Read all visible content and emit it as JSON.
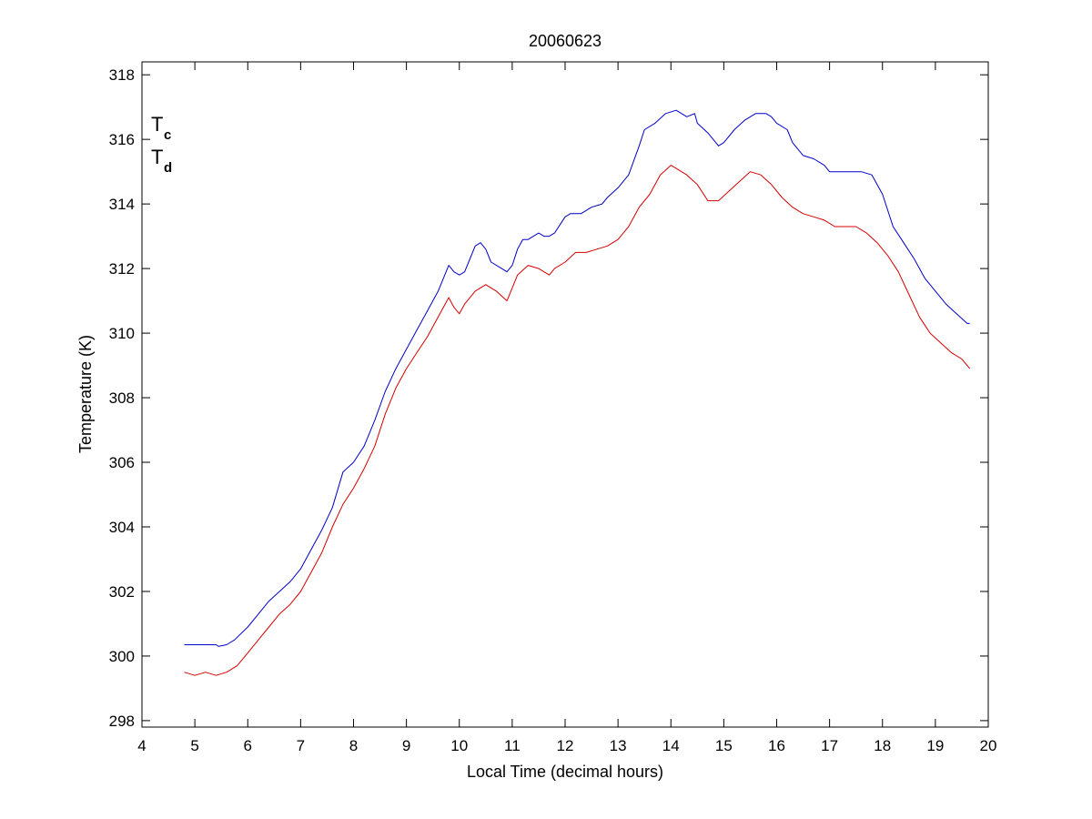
{
  "chart_data": {
    "type": "line",
    "title": "20060623",
    "xlabel": "Local Time (decimal hours)",
    "ylabel": "Temperature (K)",
    "xlim": [
      4,
      20
    ],
    "ylim": [
      297.8,
      318.4
    ],
    "xticks": [
      4,
      5,
      6,
      7,
      8,
      9,
      10,
      11,
      12,
      13,
      14,
      15,
      16,
      17,
      18,
      19,
      20
    ],
    "yticks": [
      298,
      300,
      302,
      304,
      306,
      308,
      310,
      312,
      314,
      316,
      318
    ],
    "grid": false,
    "legend": {
      "placement": "top-left",
      "entries": [
        {
          "main": "T",
          "sub": "c",
          "color": "#0000c8"
        },
        {
          "main": "T",
          "sub": "d",
          "color": "#d40000"
        }
      ]
    },
    "series": [
      {
        "color": "#0000c8",
        "x": [
          4.8,
          5.0,
          5.2,
          5.4,
          5.45,
          5.6,
          5.75,
          6.0,
          6.2,
          6.4,
          6.6,
          6.8,
          7.0,
          7.2,
          7.4,
          7.6,
          7.8,
          8.0,
          8.2,
          8.4,
          8.6,
          8.8,
          9.0,
          9.2,
          9.4,
          9.6,
          9.8,
          9.9,
          10.0,
          10.1,
          10.2,
          10.3,
          10.4,
          10.5,
          10.6,
          10.8,
          10.9,
          11.0,
          11.1,
          11.2,
          11.3,
          11.5,
          11.6,
          11.7,
          11.8,
          12.0,
          12.1,
          12.3,
          12.5,
          12.7,
          12.8,
          13.0,
          13.2,
          13.4,
          13.5,
          13.7,
          13.9,
          14.1,
          14.3,
          14.45,
          14.5,
          14.7,
          14.9,
          15.0,
          15.2,
          15.4,
          15.6,
          15.8,
          15.9,
          16.0,
          16.2,
          16.3,
          16.5,
          16.7,
          16.9,
          17.0,
          17.2,
          17.4,
          17.6,
          17.8,
          18.0,
          18.2,
          18.4,
          18.6,
          18.8,
          19.0,
          19.2,
          19.4,
          19.6,
          19.65
        ],
        "y": [
          300.35,
          300.35,
          300.35,
          300.35,
          300.3,
          300.35,
          300.5,
          300.9,
          301.3,
          301.7,
          302.0,
          302.3,
          302.7,
          303.3,
          303.9,
          304.6,
          305.7,
          306.0,
          306.5,
          307.3,
          308.2,
          308.9,
          309.5,
          310.1,
          310.7,
          311.3,
          312.1,
          311.9,
          311.8,
          311.9,
          312.3,
          312.7,
          312.8,
          312.6,
          312.2,
          312.0,
          311.9,
          312.1,
          312.6,
          312.9,
          312.9,
          313.1,
          313.0,
          313.0,
          313.1,
          313.6,
          313.7,
          313.7,
          313.9,
          314.0,
          314.2,
          314.5,
          314.9,
          315.8,
          316.3,
          316.5,
          316.8,
          316.9,
          316.7,
          316.8,
          316.5,
          316.2,
          315.8,
          315.9,
          316.3,
          316.6,
          316.8,
          316.8,
          316.7,
          316.5,
          316.3,
          315.9,
          315.5,
          315.4,
          315.2,
          315.0,
          315.0,
          315.0,
          315.0,
          314.9,
          314.3,
          313.3,
          312.8,
          312.3,
          311.7,
          311.3,
          310.9,
          310.6,
          310.3,
          310.3
        ]
      },
      {
        "color": "#d40000",
        "x": [
          4.8,
          5.0,
          5.2,
          5.4,
          5.6,
          5.8,
          6.0,
          6.2,
          6.4,
          6.6,
          6.8,
          7.0,
          7.2,
          7.4,
          7.6,
          7.8,
          8.0,
          8.2,
          8.4,
          8.6,
          8.8,
          9.0,
          9.2,
          9.4,
          9.6,
          9.8,
          9.9,
          10.0,
          10.1,
          10.3,
          10.5,
          10.7,
          10.9,
          11.0,
          11.1,
          11.3,
          11.5,
          11.7,
          11.8,
          12.0,
          12.2,
          12.4,
          12.6,
          12.8,
          13.0,
          13.2,
          13.4,
          13.6,
          13.8,
          14.0,
          14.1,
          14.3,
          14.5,
          14.7,
          14.9,
          15.1,
          15.3,
          15.5,
          15.7,
          15.9,
          16.1,
          16.3,
          16.5,
          16.7,
          16.9,
          17.1,
          17.3,
          17.5,
          17.7,
          17.9,
          18.1,
          18.3,
          18.5,
          18.7,
          18.9,
          19.1,
          19.3,
          19.5,
          19.6,
          19.65
        ],
        "y": [
          299.5,
          299.4,
          299.5,
          299.4,
          299.5,
          299.7,
          300.1,
          300.5,
          300.9,
          301.3,
          301.6,
          302.0,
          302.6,
          303.2,
          304.0,
          304.7,
          305.2,
          305.8,
          306.5,
          307.5,
          308.3,
          308.9,
          309.4,
          309.9,
          310.5,
          311.1,
          310.8,
          310.6,
          310.9,
          311.3,
          311.5,
          311.3,
          311.0,
          311.4,
          311.8,
          312.1,
          312.0,
          311.8,
          312.0,
          312.2,
          312.5,
          312.5,
          312.6,
          312.7,
          312.9,
          313.3,
          313.9,
          314.3,
          314.9,
          315.2,
          315.1,
          314.9,
          314.6,
          314.1,
          314.1,
          314.4,
          314.7,
          315.0,
          314.9,
          314.6,
          314.2,
          313.9,
          313.7,
          313.6,
          313.5,
          313.3,
          313.3,
          313.3,
          313.1,
          312.8,
          312.4,
          311.9,
          311.2,
          310.5,
          310.0,
          309.7,
          309.4,
          309.2,
          309.0,
          308.9
        ]
      }
    ]
  }
}
